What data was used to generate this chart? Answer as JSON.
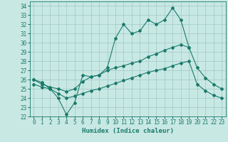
{
  "title": "",
  "xlabel": "Humidex (Indice chaleur)",
  "xlim": [
    -0.5,
    23.5
  ],
  "ylim": [
    22,
    34.5
  ],
  "yticks": [
    22,
    23,
    24,
    25,
    26,
    27,
    28,
    29,
    30,
    31,
    32,
    33,
    34
  ],
  "xticks": [
    0,
    1,
    2,
    3,
    4,
    5,
    6,
    7,
    8,
    9,
    10,
    11,
    12,
    13,
    14,
    15,
    16,
    17,
    18,
    19,
    20,
    21,
    22,
    23
  ],
  "background_color": "#c8e8e4",
  "grid_color": "#a0c8c4",
  "line_color": "#1a7a6a",
  "line1_y": [
    26.0,
    25.7,
    25.0,
    24.0,
    22.2,
    23.5,
    26.5,
    26.3,
    26.5,
    27.3,
    30.5,
    32.0,
    31.0,
    31.3,
    32.5,
    32.0,
    32.5,
    33.8,
    32.5,
    29.5,
    null,
    null,
    null,
    null
  ],
  "line2_y": [
    26.0,
    25.5,
    25.2,
    25.0,
    24.7,
    25.0,
    25.8,
    26.3,
    26.5,
    27.0,
    27.3,
    27.5,
    27.8,
    28.0,
    28.5,
    28.8,
    29.2,
    29.5,
    29.8,
    29.5,
    27.3,
    26.2,
    25.5,
    25.0
  ],
  "line3_y": [
    25.5,
    25.2,
    25.0,
    24.5,
    24.0,
    24.2,
    24.5,
    24.8,
    25.0,
    25.3,
    25.6,
    25.9,
    26.2,
    26.5,
    26.8,
    27.0,
    27.2,
    27.5,
    27.8,
    28.0,
    25.5,
    24.8,
    24.3,
    24.0
  ],
  "marker": "D",
  "marker_size": 2,
  "line_width": 0.8,
  "tick_fontsize": 5.5,
  "xlabel_fontsize": 6.5
}
